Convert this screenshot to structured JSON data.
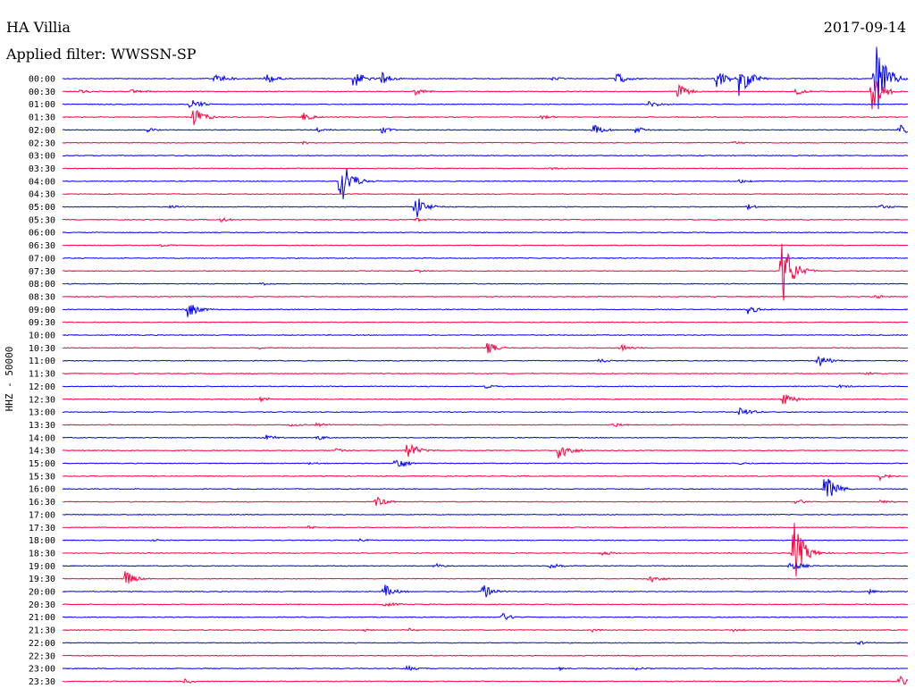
{
  "header": {
    "station": "HA Villia",
    "filter": "Applied filter: WWSSN-SP",
    "date": "2017-09-14",
    "channel": "HHZ - 50000"
  },
  "chart_data": {
    "type": "line",
    "title": "HA Villia",
    "subtitle": "Applied filter: WWSSN-SP",
    "ylabel": "HHZ - 50000",
    "xlabel": "",
    "rows": [
      "00:00",
      "00:30",
      "01:00",
      "01:30",
      "02:00",
      "02:30",
      "03:00",
      "03:30",
      "04:00",
      "04:30",
      "05:00",
      "05:30",
      "06:00",
      "06:30",
      "07:00",
      "07:30",
      "08:00",
      "08:30",
      "09:00",
      "09:30",
      "10:00",
      "10:30",
      "11:00",
      "11:30",
      "12:00",
      "12:30",
      "13:00",
      "13:30",
      "14:00",
      "14:30",
      "15:00",
      "15:30",
      "16:00",
      "16:30",
      "17:00",
      "17:30",
      "18:00",
      "18:30",
      "19:00",
      "19:30",
      "20:00",
      "20:30",
      "21:00",
      "21:30",
      "22:00",
      "22:30",
      "23:00",
      "23:30"
    ],
    "x_range_minutes": [
      0,
      30
    ],
    "colors": [
      "#0000ff",
      "#ff0040"
    ],
    "events": [
      {
        "row": 0,
        "minute": 5.4,
        "amp": 9
      },
      {
        "row": 0,
        "minute": 7.2,
        "amp": 7
      },
      {
        "row": 0,
        "minute": 10.3,
        "amp": 12
      },
      {
        "row": 0,
        "minute": 11.3,
        "amp": 8
      },
      {
        "row": 0,
        "minute": 17.3,
        "amp": 3
      },
      {
        "row": 0,
        "minute": 19.6,
        "amp": 9
      },
      {
        "row": 0,
        "minute": 23.2,
        "amp": 12
      },
      {
        "row": 0,
        "minute": 24.0,
        "amp": 26
      },
      {
        "row": 0,
        "minute": 28.8,
        "amp": 60
      },
      {
        "row": 1,
        "minute": 0.6,
        "amp": 3
      },
      {
        "row": 1,
        "minute": 2.4,
        "amp": 3
      },
      {
        "row": 1,
        "minute": 12.5,
        "amp": 4
      },
      {
        "row": 1,
        "minute": 21.8,
        "amp": 10
      },
      {
        "row": 1,
        "minute": 26.0,
        "amp": 4
      },
      {
        "row": 1,
        "minute": 28.7,
        "amp": 25
      },
      {
        "row": 2,
        "minute": 4.5,
        "amp": 9
      },
      {
        "row": 2,
        "minute": 20.8,
        "amp": 4
      },
      {
        "row": 3,
        "minute": 4.6,
        "amp": 14
      },
      {
        "row": 3,
        "minute": 8.5,
        "amp": 6
      },
      {
        "row": 3,
        "minute": 17.0,
        "amp": 3
      },
      {
        "row": 4,
        "minute": 3.0,
        "amp": 3
      },
      {
        "row": 4,
        "minute": 9.0,
        "amp": 3
      },
      {
        "row": 4,
        "minute": 11.3,
        "amp": 4
      },
      {
        "row": 4,
        "minute": 18.8,
        "amp": 8
      },
      {
        "row": 4,
        "minute": 20.3,
        "amp": 4
      },
      {
        "row": 4,
        "minute": 29.7,
        "amp": 6
      },
      {
        "row": 5,
        "minute": 8.5,
        "amp": 2
      },
      {
        "row": 5,
        "minute": 23.8,
        "amp": 2
      },
      {
        "row": 7,
        "minute": 17.3,
        "amp": 2
      },
      {
        "row": 8,
        "minute": 9.8,
        "amp": 40
      },
      {
        "row": 8,
        "minute": 24.0,
        "amp": 3
      },
      {
        "row": 10,
        "minute": 3.8,
        "amp": 3
      },
      {
        "row": 10,
        "minute": 12.5,
        "amp": 16
      },
      {
        "row": 10,
        "minute": 24.3,
        "amp": 3
      },
      {
        "row": 10,
        "minute": 29.0,
        "amp": 3
      },
      {
        "row": 11,
        "minute": 5.6,
        "amp": 3
      },
      {
        "row": 11,
        "minute": 12.5,
        "amp": 3
      },
      {
        "row": 13,
        "minute": 3.5,
        "amp": 2
      },
      {
        "row": 15,
        "minute": 25.5,
        "amp": 48
      },
      {
        "row": 15,
        "minute": 12.5,
        "amp": 2
      },
      {
        "row": 16,
        "minute": 7.0,
        "amp": 2
      },
      {
        "row": 17,
        "minute": 28.8,
        "amp": 3
      },
      {
        "row": 18,
        "minute": 4.4,
        "amp": 12
      },
      {
        "row": 18,
        "minute": 24.3,
        "amp": 6
      },
      {
        "row": 21,
        "minute": 7.0,
        "amp": 2
      },
      {
        "row": 21,
        "minute": 15.0,
        "amp": 9
      },
      {
        "row": 21,
        "minute": 19.8,
        "amp": 5
      },
      {
        "row": 22,
        "minute": 19.0,
        "amp": 3
      },
      {
        "row": 22,
        "minute": 26.8,
        "amp": 9
      },
      {
        "row": 23,
        "minute": 28.5,
        "amp": 3
      },
      {
        "row": 24,
        "minute": 15.0,
        "amp": 3
      },
      {
        "row": 24,
        "minute": 27.5,
        "amp": 3
      },
      {
        "row": 25,
        "minute": 7.0,
        "amp": 3
      },
      {
        "row": 25,
        "minute": 25.5,
        "amp": 10
      },
      {
        "row": 26,
        "minute": 24.0,
        "amp": 8
      },
      {
        "row": 26,
        "minute": 29.0,
        "amp": 2
      },
      {
        "row": 27,
        "minute": 8.0,
        "amp": 3
      },
      {
        "row": 27,
        "minute": 9.0,
        "amp": 3
      },
      {
        "row": 27,
        "minute": 19.5,
        "amp": 3
      },
      {
        "row": 28,
        "minute": 7.2,
        "amp": 4
      },
      {
        "row": 28,
        "minute": 9.0,
        "amp": 4
      },
      {
        "row": 29,
        "minute": 9.7,
        "amp": 3
      },
      {
        "row": 29,
        "minute": 12.2,
        "amp": 13
      },
      {
        "row": 29,
        "minute": 17.6,
        "amp": 15
      },
      {
        "row": 30,
        "minute": 8.7,
        "amp": 2
      },
      {
        "row": 30,
        "minute": 11.8,
        "amp": 10
      },
      {
        "row": 30,
        "minute": 24.0,
        "amp": 2
      },
      {
        "row": 31,
        "minute": 29.0,
        "amp": 5
      },
      {
        "row": 32,
        "minute": 27.0,
        "amp": 22
      },
      {
        "row": 33,
        "minute": 11.1,
        "amp": 7
      },
      {
        "row": 33,
        "minute": 26.0,
        "amp": 4
      },
      {
        "row": 33,
        "minute": 29.0,
        "amp": 3
      },
      {
        "row": 35,
        "minute": 8.7,
        "amp": 2
      },
      {
        "row": 36,
        "minute": 3.1,
        "amp": 2
      },
      {
        "row": 36,
        "minute": 10.5,
        "amp": 2
      },
      {
        "row": 37,
        "minute": 19.1,
        "amp": 4
      },
      {
        "row": 37,
        "minute": 25.9,
        "amp": 45
      },
      {
        "row": 38,
        "minute": 13.2,
        "amp": 3
      },
      {
        "row": 38,
        "minute": 17.3,
        "amp": 5
      },
      {
        "row": 38,
        "minute": 25.8,
        "amp": 8
      },
      {
        "row": 39,
        "minute": 2.2,
        "amp": 10
      },
      {
        "row": 39,
        "minute": 20.8,
        "amp": 7
      },
      {
        "row": 40,
        "minute": 11.4,
        "amp": 9
      },
      {
        "row": 40,
        "minute": 14.9,
        "amp": 10
      },
      {
        "row": 40,
        "minute": 28.6,
        "amp": 3
      },
      {
        "row": 41,
        "minute": 11.4,
        "amp": 4
      },
      {
        "row": 42,
        "minute": 15.5,
        "amp": 7
      },
      {
        "row": 43,
        "minute": 10.7,
        "amp": 2
      },
      {
        "row": 43,
        "minute": 12.3,
        "amp": 2
      },
      {
        "row": 43,
        "minute": 18.8,
        "amp": 2
      },
      {
        "row": 43,
        "minute": 23.8,
        "amp": 2
      },
      {
        "row": 44,
        "minute": 28.2,
        "amp": 3
      },
      {
        "row": 46,
        "minute": 12.2,
        "amp": 4
      },
      {
        "row": 46,
        "minute": 17.6,
        "amp": 2
      },
      {
        "row": 46,
        "minute": 20.3,
        "amp": 2
      },
      {
        "row": 47,
        "minute": 4.3,
        "amp": 3
      },
      {
        "row": 47,
        "minute": 29.7,
        "amp": 7
      }
    ]
  }
}
